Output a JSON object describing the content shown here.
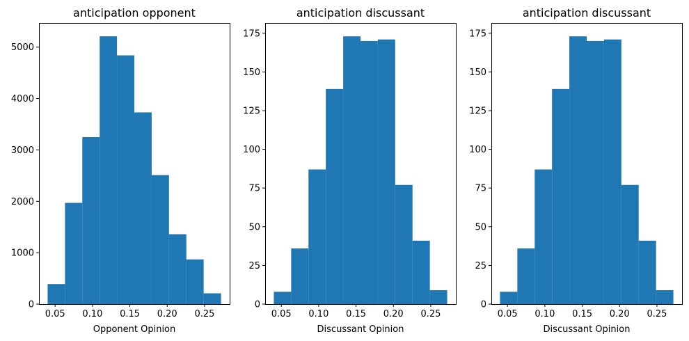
{
  "chart_data": [
    {
      "type": "bar",
      "title": "anticipation opponent",
      "xlabel": "Opponent Opinion",
      "ylabel": "",
      "bin_edges": [
        0.04,
        0.0632,
        0.0864,
        0.1096,
        0.1328,
        0.156,
        0.1792,
        0.2024,
        0.2256,
        0.2488,
        0.272
      ],
      "values": [
        390,
        1970,
        3250,
        5210,
        4840,
        3730,
        2510,
        1360,
        870,
        210
      ],
      "xlim": [
        0.0284,
        0.2836
      ],
      "ylim": [
        0,
        5470
      ],
      "xticks": [
        0.05,
        0.1,
        0.15,
        0.2,
        0.25
      ],
      "xtick_labels": [
        "0.05",
        "0.10",
        "0.15",
        "0.20",
        "0.25"
      ],
      "yticks": [
        0,
        1000,
        2000,
        3000,
        4000,
        5000
      ],
      "ytick_labels": [
        "0",
        "1000",
        "2000",
        "3000",
        "4000",
        "5000"
      ],
      "color": "#1f77b4",
      "grid": false
    },
    {
      "type": "bar",
      "title": "anticipation discussant",
      "xlabel": "Discussant Opinion",
      "ylabel": "",
      "bin_edges": [
        0.04,
        0.0632,
        0.0864,
        0.1096,
        0.1328,
        0.156,
        0.1792,
        0.2024,
        0.2256,
        0.2488,
        0.272
      ],
      "values": [
        8,
        36,
        87,
        139,
        173,
        170,
        171,
        77,
        41,
        9
      ],
      "xlim": [
        0.0284,
        0.2836
      ],
      "ylim": [
        0,
        181.65
      ],
      "xticks": [
        0.05,
        0.1,
        0.15,
        0.2,
        0.25
      ],
      "xtick_labels": [
        "0.05",
        "0.10",
        "0.15",
        "0.20",
        "0.25"
      ],
      "yticks": [
        0,
        25,
        50,
        75,
        100,
        125,
        150,
        175
      ],
      "ytick_labels": [
        "0",
        "25",
        "50",
        "75",
        "100",
        "125",
        "150",
        "175"
      ],
      "color": "#1f77b4",
      "grid": false
    },
    {
      "type": "bar",
      "title": "anticipation discussant",
      "xlabel": "Discussant Opinion",
      "ylabel": "",
      "bin_edges": [
        0.04,
        0.0632,
        0.0864,
        0.1096,
        0.1328,
        0.156,
        0.1792,
        0.2024,
        0.2256,
        0.2488,
        0.272
      ],
      "values": [
        8,
        36,
        87,
        139,
        173,
        170,
        171,
        77,
        41,
        9
      ],
      "xlim": [
        0.0284,
        0.2836
      ],
      "ylim": [
        0,
        181.65
      ],
      "xticks": [
        0.05,
        0.1,
        0.15,
        0.2,
        0.25
      ],
      "xtick_labels": [
        "0.05",
        "0.10",
        "0.15",
        "0.20",
        "0.25"
      ],
      "yticks": [
        0,
        25,
        50,
        75,
        100,
        125,
        150,
        175
      ],
      "ytick_labels": [
        "0",
        "25",
        "50",
        "75",
        "100",
        "125",
        "150",
        "175"
      ],
      "color": "#1f77b4",
      "grid": false
    }
  ]
}
